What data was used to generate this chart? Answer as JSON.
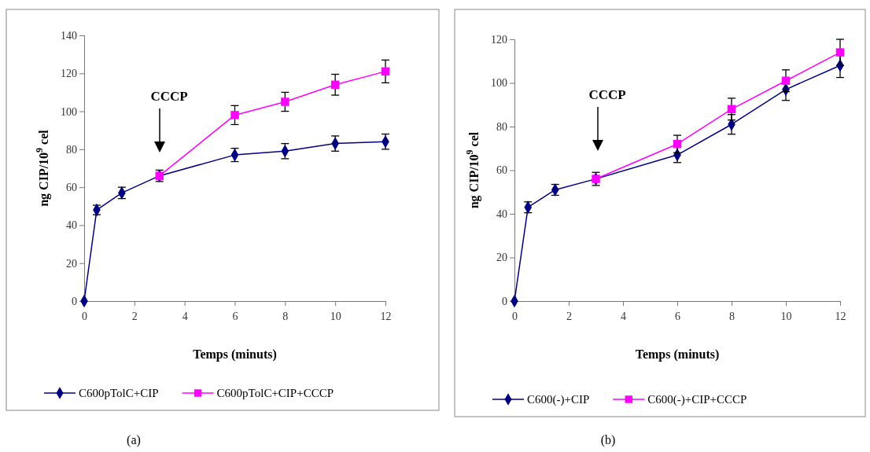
{
  "chart_data": [
    {
      "type": "line",
      "xlabel": "Temps (minuts)",
      "ylabel": "ng CIP/10$^{9}$ cel",
      "xlim": [
        0,
        12
      ],
      "xticks": [
        0,
        2,
        4,
        6,
        8,
        10,
        12
      ],
      "ylim": [
        0,
        140
      ],
      "yticks": [
        0,
        20,
        40,
        60,
        80,
        100,
        120,
        140
      ],
      "grid": false,
      "legend": "bottom",
      "annotations": [
        "CCCP",
        "(a)"
      ],
      "series": [
        {
          "name": "C600pTolC+CIP",
          "color": "#000080",
          "marker": "diamond",
          "x": [
            0,
            0.5,
            1.5,
            3,
            6,
            8,
            10,
            12
          ],
          "values": [
            0,
            48,
            57,
            66,
            77,
            79,
            83,
            84
          ],
          "errors": [
            null,
            2.5,
            3,
            3,
            3.5,
            4,
            4,
            4
          ]
        },
        {
          "name": "C600pTolC+CIP+CCCP",
          "color": "#ff00ff",
          "marker": "square",
          "x": [
            3,
            6,
            8,
            10,
            12
          ],
          "values": [
            66,
            98,
            105,
            114,
            121
          ],
          "errors": [
            null,
            5,
            5,
            5.5,
            6
          ]
        }
      ]
    },
    {
      "type": "line",
      "xlabel": "Temps (minuts)",
      "ylabel": "ng CIP/10$^{9}$ cel",
      "xlim": [
        0,
        12
      ],
      "xticks": [
        0,
        2,
        4,
        6,
        8,
        10,
        12
      ],
      "ylim": [
        0,
        120
      ],
      "yticks": [
        0,
        20,
        40,
        60,
        80,
        100,
        120
      ],
      "grid": false,
      "legend": "bottom",
      "annotations": [
        "CCCP",
        "(b)"
      ],
      "series": [
        {
          "name": "C600(-)+CIP",
          "color": "#000080",
          "marker": "diamond",
          "x": [
            0,
            0.5,
            1.5,
            3,
            6,
            8,
            10,
            12
          ],
          "values": [
            0,
            43,
            51,
            56,
            67,
            81,
            97,
            108
          ],
          "errors": [
            null,
            2.5,
            2.5,
            3,
            3.5,
            4.5,
            5,
            5.5
          ]
        },
        {
          "name": "C600(-)+CIP+CCCP",
          "color": "#ff00ff",
          "marker": "square",
          "x": [
            3,
            6,
            8,
            10,
            12
          ],
          "values": [
            56,
            72,
            88,
            101,
            114
          ],
          "errors": [
            null,
            4,
            5,
            5,
            6
          ]
        }
      ]
    }
  ]
}
